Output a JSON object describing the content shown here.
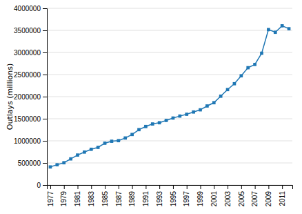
{
  "chart_data": {
    "type": "line",
    "ylabel": "Outlays (millions)",
    "x": [
      1977,
      1978,
      1979,
      1980,
      1981,
      1982,
      1983,
      1984,
      1985,
      1986,
      1987,
      1988,
      1989,
      1990,
      1991,
      1992,
      1993,
      1994,
      1995,
      1996,
      1997,
      1998,
      1999,
      2000,
      2001,
      2002,
      2003,
      2004,
      2005,
      2006,
      2007,
      2008,
      2009,
      2010,
      2011,
      2012
    ],
    "values": [
      409200,
      458700,
      504000,
      590900,
      678200,
      745700,
      808400,
      851800,
      946300,
      990400,
      1004000,
      1064100,
      1143700,
      1253000,
      1324200,
      1381500,
      1409400,
      1461800,
      1515700,
      1560500,
      1601100,
      1652500,
      1701800,
      1789000,
      1862800,
      2010900,
      2159900,
      2292800,
      2472200,
      2655000,
      2728700,
      2982500,
      3517700,
      3457100,
      3603100,
      3537100
    ],
    "xlim": [
      1976.5,
      2012.5
    ],
    "xticks": [
      1977,
      1979,
      1981,
      1983,
      1985,
      1987,
      1989,
      1991,
      1993,
      1995,
      1997,
      1999,
      2001,
      2003,
      2005,
      2007,
      2009,
      2011
    ],
    "ylim": [
      0,
      4000000
    ],
    "yticks": [
      0,
      500000,
      1000000,
      1500000,
      2000000,
      2500000,
      3000000,
      3500000,
      4000000
    ],
    "grid": "y",
    "marker": "square"
  }
}
